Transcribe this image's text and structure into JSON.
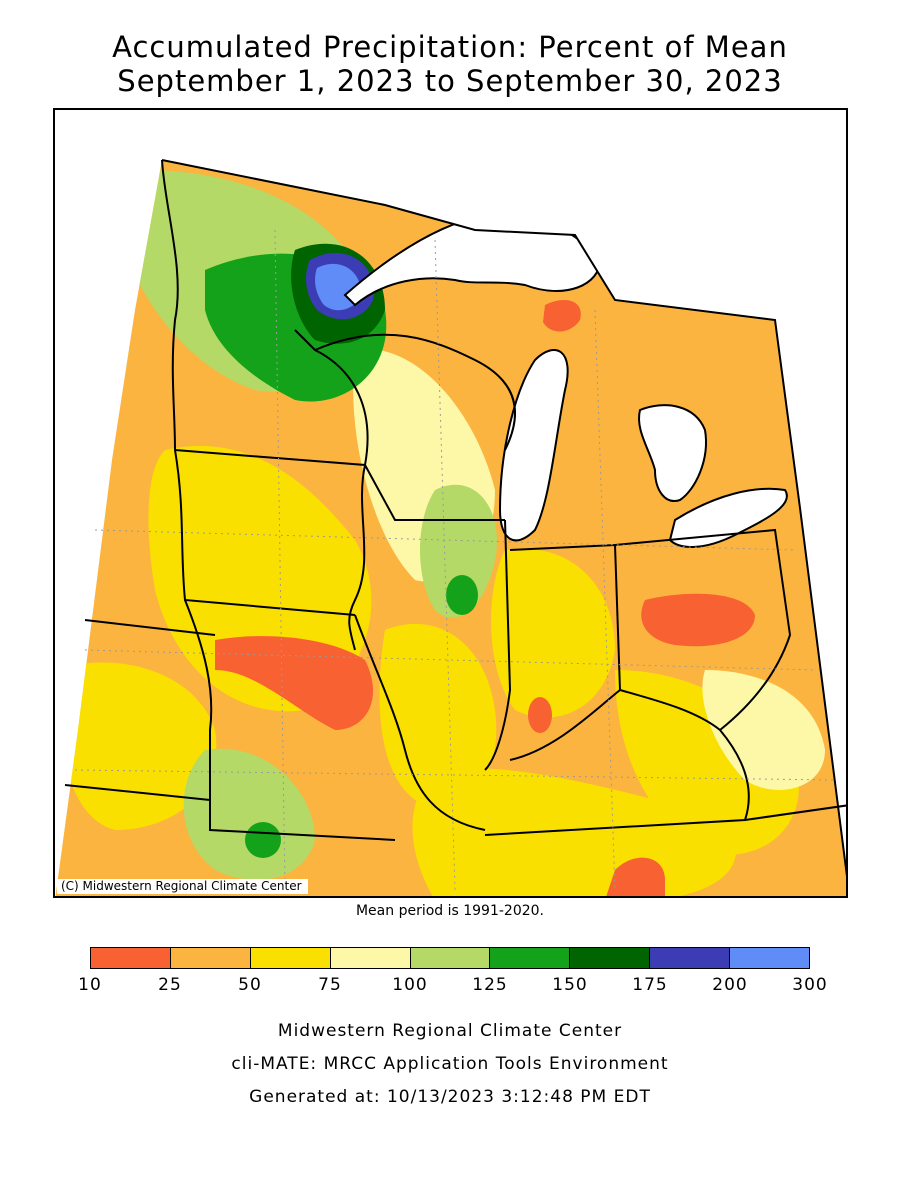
{
  "title_line1": "Accumulated Precipitation: Percent of Mean",
  "title_line2": "September 1, 2023 to September 30, 2023",
  "map_credit": "(C) Midwestern Regional Climate Center",
  "mean_period": "Mean period is 1991-2020.",
  "legend": {
    "colors": [
      "#f86131",
      "#fbb43f",
      "#fae001",
      "#fdf8a8",
      "#b4d966",
      "#14a21a",
      "#006400",
      "#3c3cb4",
      "#5f8cf7"
    ],
    "ticks": [
      "10",
      "25",
      "50",
      "75",
      "100",
      "125",
      "150",
      "175",
      "200",
      "300"
    ]
  },
  "footer": {
    "line1": "Midwestern Regional Climate Center",
    "line2": "cli-MATE: MRCC Application Tools Environment",
    "line3": "Generated at: 10/13/2023 3:12:48 PM EDT"
  },
  "map_colors": {
    "land_base": "#fbb43f",
    "water": "#ffffff",
    "border": "#000000"
  }
}
